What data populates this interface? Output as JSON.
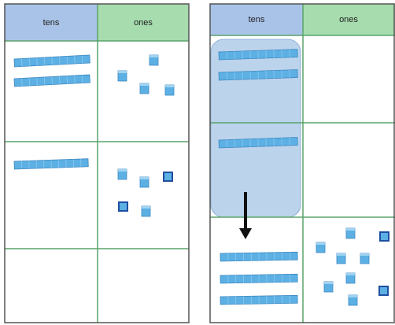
{
  "left_table": {
    "headers": [
      "tens",
      "ones"
    ]
  },
  "right_table": {
    "headers": [
      "tens",
      "ones"
    ]
  }
}
